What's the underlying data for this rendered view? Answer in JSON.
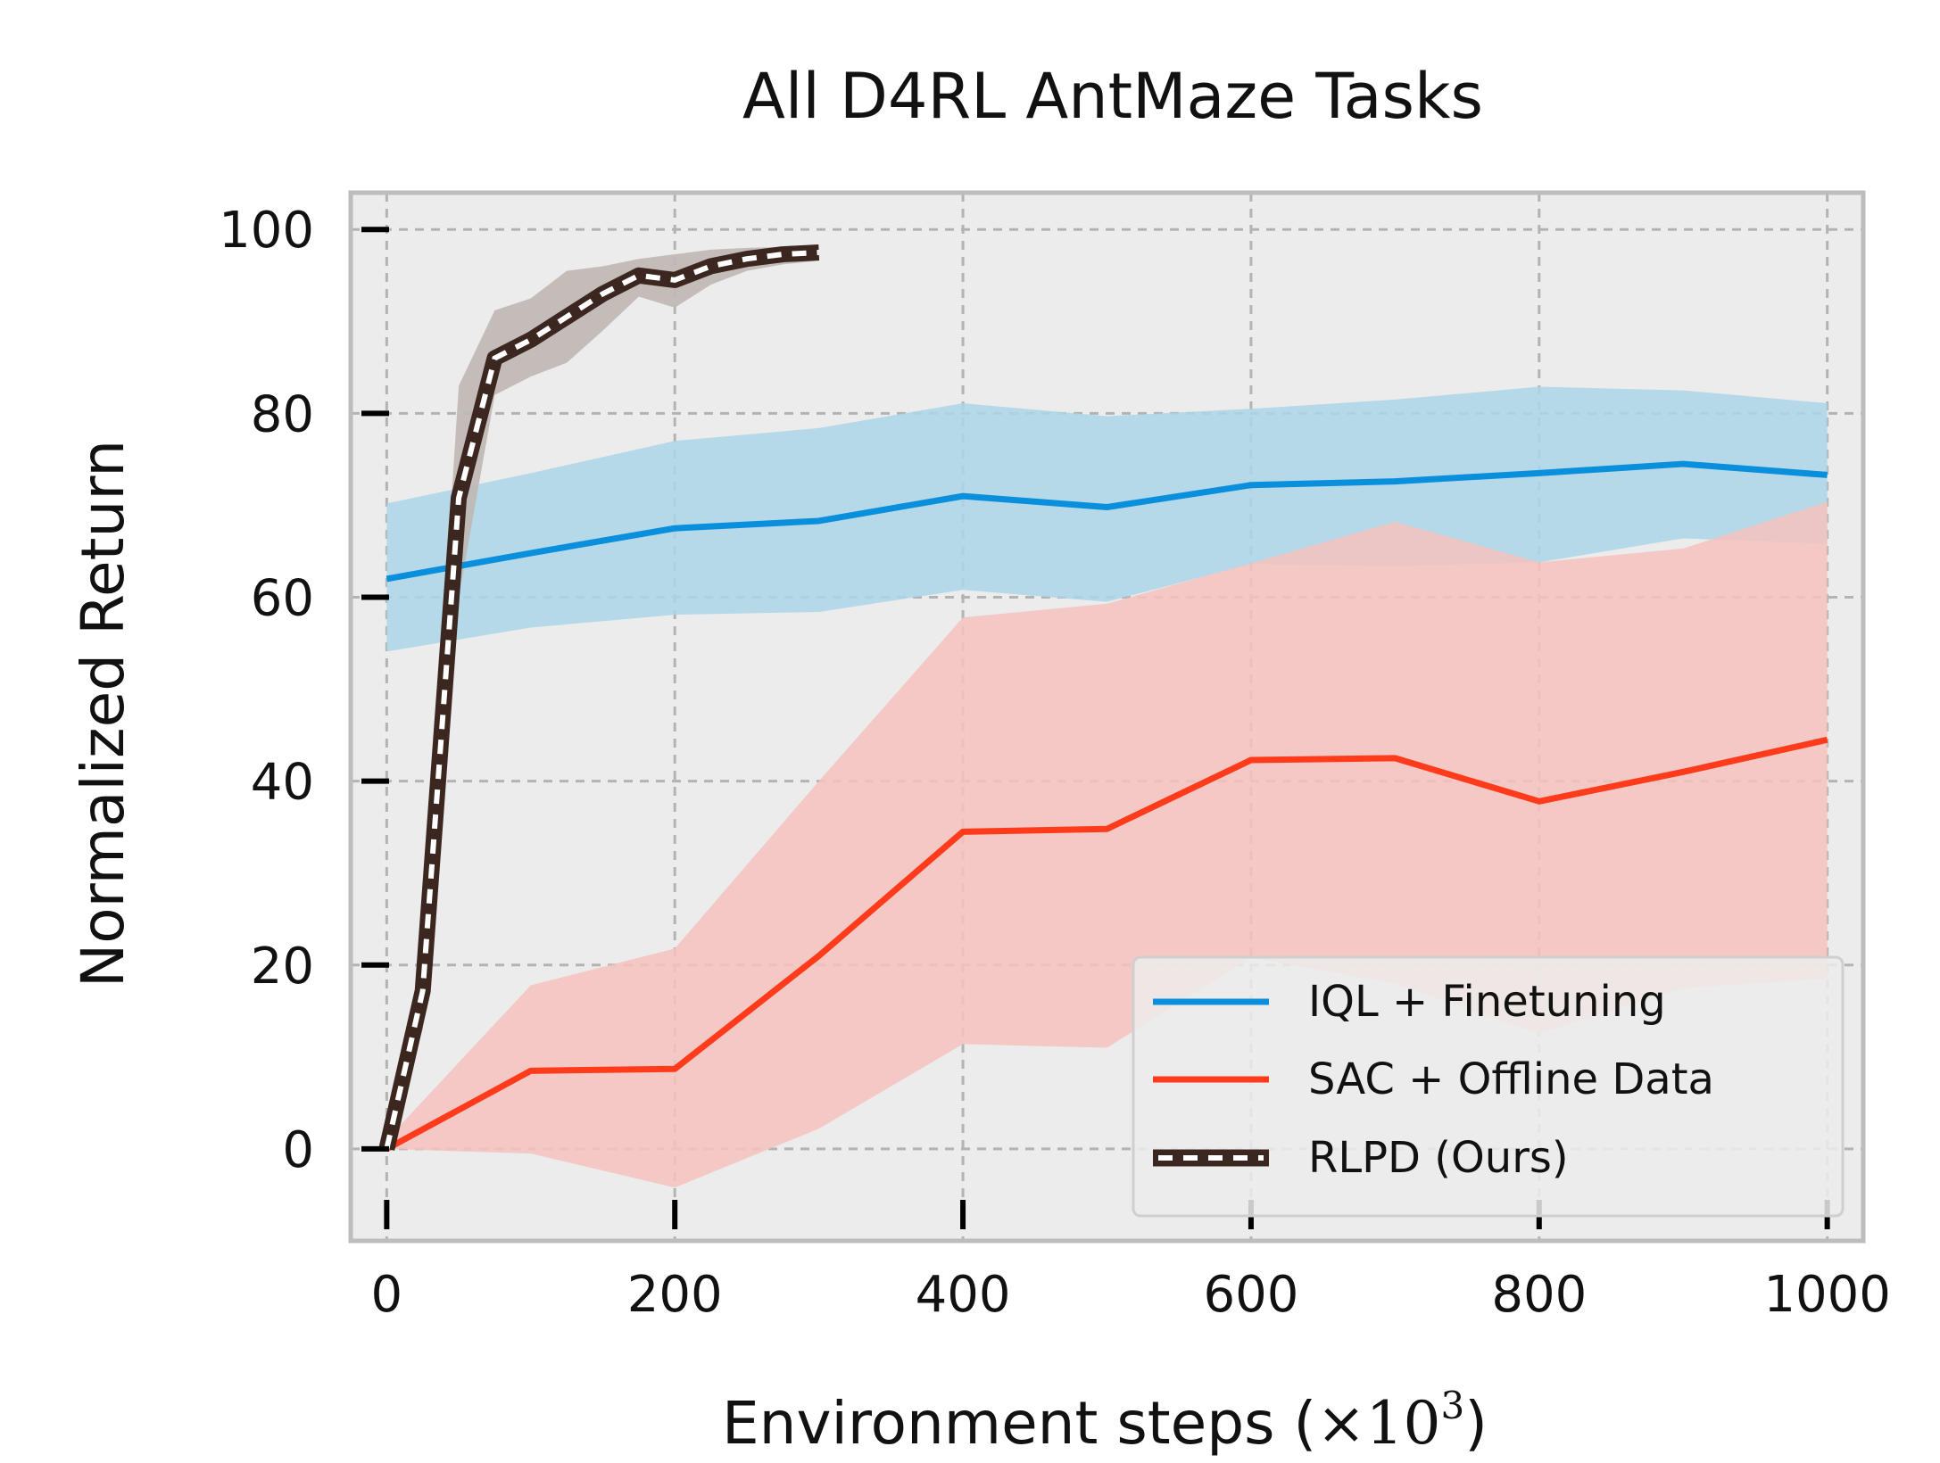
{
  "chart_data": {
    "type": "line",
    "title": "All D4RL AntMaze Tasks",
    "xlabel": "Environment steps (×10³)",
    "xlabel_parts": {
      "text": "Environment steps (",
      "times": "×",
      "base": "10",
      "exp": "3",
      "close": ")"
    },
    "ylabel": "Normalized Return",
    "xlim": [
      -25,
      1025
    ],
    "ylim": [
      -10,
      104
    ],
    "xticks": [
      0,
      200,
      400,
      600,
      800,
      1000
    ],
    "xtick_labels": [
      "0",
      "200",
      "400",
      "600",
      "800",
      "1000"
    ],
    "yticks": [
      0,
      20,
      40,
      60,
      80,
      100
    ],
    "ytick_labels": [
      "0",
      "20",
      "40",
      "60",
      "80",
      "100"
    ],
    "grid": true,
    "legend_position": "lower-right",
    "series": [
      {
        "name": "IQL + Finetuning",
        "color": "#0a8fdc",
        "band_color": "#abd6e8",
        "style": "solid",
        "x": [
          0,
          100,
          200,
          300,
          400,
          500,
          600,
          700,
          800,
          900,
          1000
        ],
        "y": [
          62.0,
          64.8,
          67.5,
          68.3,
          71.0,
          69.8,
          72.2,
          72.6,
          73.5,
          74.5,
          73.3
        ],
        "upper": [
          70.2,
          73.5,
          77.0,
          78.4,
          81.1,
          79.7,
          80.5,
          81.5,
          82.9,
          82.5,
          81.1
        ],
        "lower": [
          54.1,
          56.7,
          58.1,
          58.4,
          60.8,
          59.5,
          63.6,
          63.4,
          63.8,
          66.4,
          65.8
        ]
      },
      {
        "name": "SAC + Offline Data",
        "color": "#ff3b1c",
        "band_color": "#f6c2bd",
        "style": "solid",
        "x": [
          0,
          100,
          200,
          300,
          400,
          500,
          600,
          700,
          800,
          900,
          1000
        ],
        "y": [
          0.0,
          8.5,
          8.7,
          21.0,
          34.5,
          34.8,
          42.3,
          42.5,
          37.8,
          41.0,
          44.5
        ],
        "upper": [
          1.0,
          17.8,
          21.8,
          40.0,
          57.8,
          59.3,
          63.7,
          68.2,
          63.8,
          65.3,
          70.4
        ],
        "lower": [
          0.0,
          -0.5,
          -4.2,
          2.2,
          11.4,
          11.0,
          20.8,
          18.0,
          12.5,
          17.5,
          18.5
        ]
      },
      {
        "name": "RLPD (Ours)",
        "color": "#3b2720",
        "dash_color": "#ffffff",
        "band_color": "#bfb7b4",
        "style": "dashed-outline",
        "x": [
          0,
          25,
          50,
          75,
          100,
          125,
          150,
          175,
          200,
          225,
          250,
          275,
          300
        ],
        "y": [
          0.0,
          17.2,
          70.8,
          86.0,
          88.0,
          90.5,
          93.0,
          95.0,
          94.5,
          96.0,
          96.8,
          97.3,
          97.5
        ],
        "upper": [
          0.0,
          22.0,
          83.0,
          91.2,
          92.5,
          95.5,
          96.0,
          96.8,
          97.3,
          97.8,
          98.0,
          98.1,
          98.3
        ],
        "lower": [
          0.0,
          13.0,
          60.0,
          82.0,
          84.0,
          85.5,
          89.0,
          92.7,
          91.5,
          94.0,
          95.5,
          96.2,
          96.6
        ]
      }
    ]
  }
}
